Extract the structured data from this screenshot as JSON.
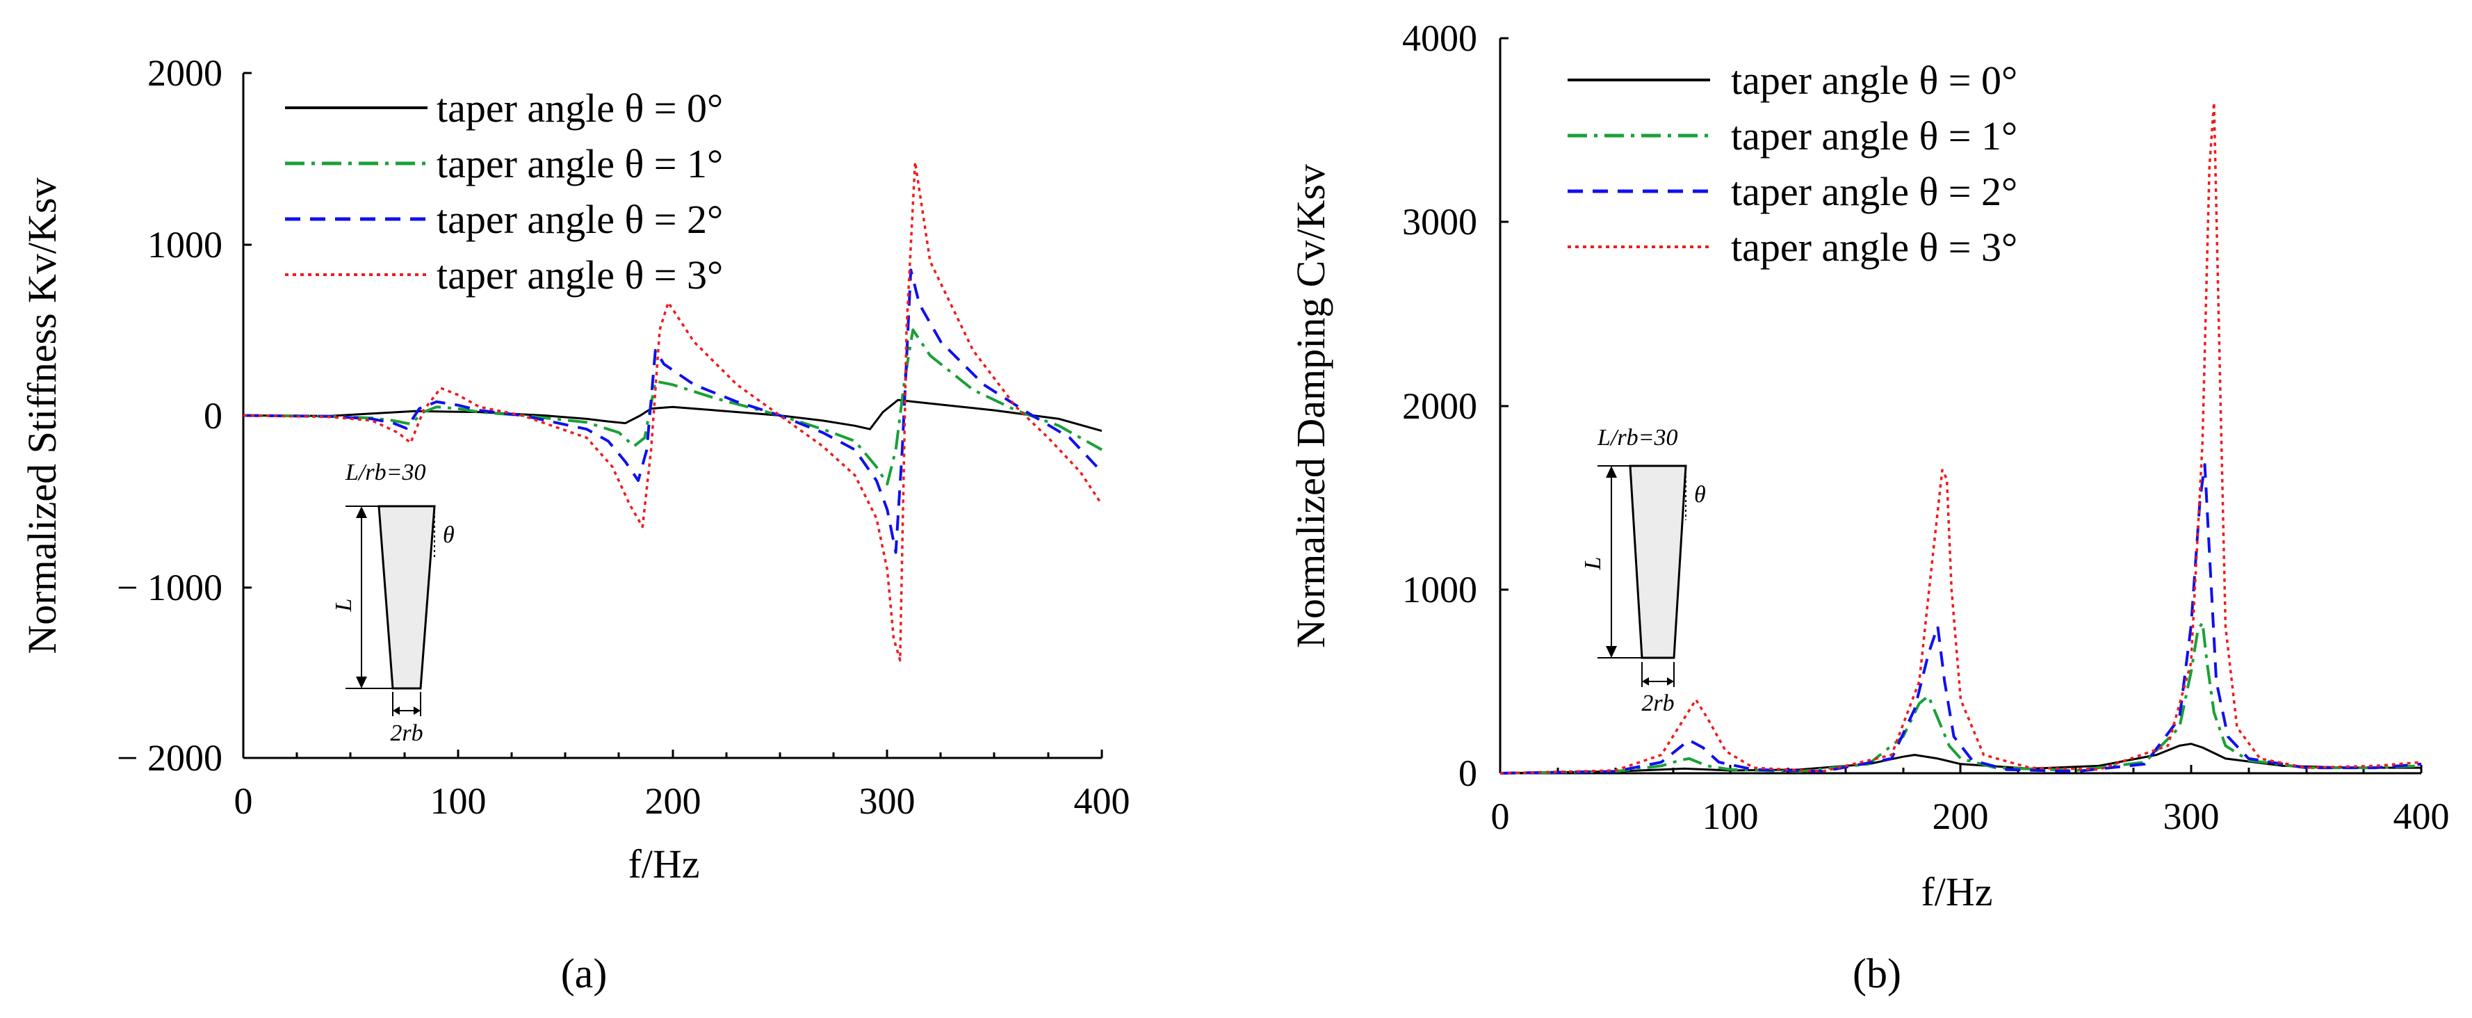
{
  "chart_data": [
    {
      "panel": "a",
      "caption": "(a)",
      "type": "line",
      "ylabel": "Normalized Stiffness Kv/Ksv",
      "xlabel": "f/Hz",
      "xlim": [
        0,
        400
      ],
      "ylim": [
        -2000,
        2000
      ],
      "xticks": [
        "0",
        "100",
        "200",
        "300",
        "400"
      ],
      "yticks": [
        "2000",
        "1000",
        "0",
        "− 1000",
        "− 2000"
      ],
      "legend": [
        "taper angle θ = 0°",
        "taper angle θ = 1°",
        "taper angle θ = 2°",
        "taper angle θ = 3°"
      ],
      "inset": {
        "ratio": "L/rb=30",
        "length": "L",
        "angle": "θ",
        "diameter": "2rb"
      },
      "series": [
        {
          "name": "taper angle θ = 0°",
          "x": [
            0,
            40,
            80,
            110,
            140,
            160,
            170,
            178,
            185,
            190,
            200,
            220,
            250,
            270,
            285,
            292,
            298,
            305,
            320,
            350,
            380,
            400
          ],
          "y": [
            0,
            -3,
            25,
            20,
            0,
            -20,
            -35,
            -45,
            0,
            40,
            50,
            30,
            0,
            -30,
            -60,
            -80,
            20,
            90,
            70,
            30,
            -20,
            -90
          ]
        },
        {
          "name": "taper angle θ = 1°",
          "x": [
            0,
            40,
            60,
            70,
            78,
            84,
            90,
            100,
            110,
            130,
            160,
            175,
            182,
            187,
            192,
            200,
            220,
            250,
            270,
            285,
            295,
            300,
            304,
            308,
            312,
            320,
            340,
            360,
            380,
            400
          ],
          "y": [
            0,
            -5,
            -15,
            -30,
            -50,
            20,
            50,
            40,
            20,
            0,
            -40,
            -100,
            -180,
            -130,
            200,
            180,
            100,
            0,
            -80,
            -150,
            -300,
            -400,
            -200,
            200,
            500,
            350,
            150,
            30,
            -60,
            -200
          ]
        },
        {
          "name": "taper angle θ = 2°",
          "x": [
            0,
            40,
            60,
            70,
            76,
            82,
            90,
            100,
            110,
            130,
            160,
            170,
            178,
            184,
            188,
            192,
            196,
            210,
            230,
            250,
            270,
            285,
            295,
            300,
            304,
            307,
            311,
            315,
            325,
            345,
            365,
            385,
            400
          ],
          "y": [
            0,
            -5,
            -20,
            -45,
            -75,
            40,
            80,
            60,
            30,
            0,
            -80,
            -150,
            -270,
            -380,
            -200,
            380,
            300,
            180,
            80,
            0,
            -100,
            -200,
            -380,
            -550,
            -800,
            -200,
            850,
            650,
            430,
            180,
            20,
            -130,
            -330
          ]
        },
        {
          "name": "taper angle θ = 3°",
          "x": [
            0,
            40,
            60,
            72,
            78,
            84,
            92,
            100,
            110,
            130,
            160,
            172,
            180,
            186,
            190,
            194,
            198,
            210,
            230,
            250,
            270,
            285,
            295,
            300,
            303,
            306,
            309,
            313,
            320,
            340,
            360,
            375,
            390,
            400
          ],
          "y": [
            0,
            -8,
            -30,
            -100,
            -160,
            30,
            160,
            120,
            50,
            0,
            -130,
            -300,
            -520,
            -650,
            -200,
            500,
            660,
            430,
            180,
            0,
            -180,
            -350,
            -600,
            -900,
            -1300,
            -1430,
            500,
            1480,
            900,
            380,
            50,
            -130,
            -330,
            -520
          ]
        }
      ]
    },
    {
      "panel": "b",
      "caption": "(b)",
      "type": "line",
      "ylabel": "Normalized Damping Cv/Ksv",
      "xlabel": "f/Hz",
      "xlim": [
        0,
        400
      ],
      "ylim": [
        0,
        4000
      ],
      "xticks": [
        "0",
        "100",
        "200",
        "300",
        "400"
      ],
      "yticks": [
        "4000",
        "3000",
        "2000",
        "1000",
        "0"
      ],
      "legend": [
        "taper angle θ = 0°",
        "taper angle θ = 1°",
        "taper angle θ = 2°",
        "taper angle θ = 3°"
      ],
      "inset": {
        "ratio": "L/rb=30",
        "length": "L",
        "angle": "θ",
        "diameter": "2rb"
      },
      "series": [
        {
          "name": "taper angle θ = 0°",
          "x": [
            0,
            50,
            70,
            80,
            100,
            130,
            160,
            175,
            180,
            190,
            200,
            230,
            260,
            285,
            295,
            300,
            305,
            315,
            340,
            370,
            400
          ],
          "y": [
            0,
            10,
            20,
            25,
            15,
            20,
            50,
            90,
            100,
            80,
            50,
            25,
            40,
            100,
            150,
            160,
            140,
            80,
            40,
            30,
            30
          ]
        },
        {
          "name": "taper angle θ = 1°",
          "x": [
            0,
            50,
            70,
            78,
            82,
            90,
            100,
            130,
            160,
            175,
            182,
            186,
            190,
            195,
            200,
            215,
            250,
            280,
            295,
            300,
            303,
            305,
            307,
            310,
            315,
            325,
            350,
            380,
            400
          ],
          "y": [
            0,
            10,
            40,
            70,
            80,
            40,
            20,
            10,
            50,
            200,
            380,
            420,
            300,
            150,
            80,
            30,
            15,
            60,
            250,
            550,
            780,
            820,
            600,
            330,
            150,
            70,
            30,
            30,
            40
          ]
        },
        {
          "name": "taper angle θ = 2°",
          "x": [
            0,
            50,
            70,
            78,
            82,
            88,
            95,
            110,
            140,
            170,
            180,
            186,
            190,
            193,
            197,
            205,
            220,
            250,
            280,
            295,
            300,
            304,
            306,
            308,
            311,
            316,
            325,
            350,
            380,
            400
          ],
          "y": [
            0,
            10,
            60,
            140,
            180,
            140,
            60,
            20,
            10,
            80,
            350,
            650,
            800,
            500,
            200,
            70,
            20,
            10,
            50,
            300,
            800,
            1500,
            1680,
            1200,
            500,
            200,
            80,
            30,
            30,
            50
          ]
        },
        {
          "name": "taper angle θ = 3°",
          "x": [
            0,
            50,
            70,
            80,
            85,
            90,
            98,
            110,
            140,
            170,
            182,
            188,
            192,
            194,
            196,
            200,
            210,
            230,
            260,
            290,
            300,
            305,
            308,
            310,
            312,
            315,
            320,
            330,
            350,
            380,
            400
          ],
          "y": [
            0,
            15,
            100,
            300,
            400,
            300,
            120,
            30,
            10,
            100,
            500,
            1200,
            1650,
            1600,
            1000,
            400,
            100,
            30,
            20,
            150,
            600,
            1800,
            3300,
            3650,
            2500,
            800,
            250,
            80,
            30,
            40,
            60
          ]
        }
      ]
    }
  ],
  "colors": {
    "s0": "#000000",
    "s1": "#1aa038",
    "s2": "#1010ee",
    "s3": "#ee1c1c",
    "inset_fill": "#ececec"
  }
}
